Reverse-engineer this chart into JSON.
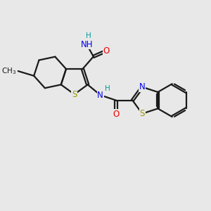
{
  "background_color": "#e8e8e8",
  "bond_color": "#1a1a1a",
  "bond_width": 1.6,
  "atom_colors": {
    "S": "#999900",
    "N": "#0000ee",
    "O": "#ee0000",
    "H": "#009999",
    "C": "#1a1a1a"
  }
}
